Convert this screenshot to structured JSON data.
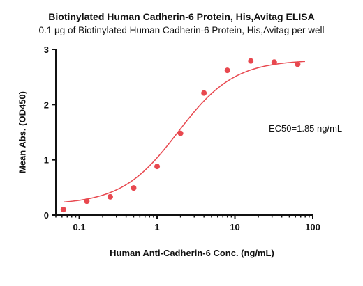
{
  "chart_data": {
    "type": "scatter",
    "title": "Biotinylated Human Cadherin-6 Protein, His,Avitag ELISA",
    "subtitle": "0.1 μg of Biotinylated Human Cadherin-6 Protein, His,Avitag per well",
    "xlabel": "Human Anti-Cadherin-6 Conc. (ng/mL)",
    "ylabel": "Mean Abs. (OD450)",
    "x_scale": "log",
    "xlim": [
      0.05,
      100
    ],
    "ylim": [
      0,
      3
    ],
    "x_ticks": [
      "0.1",
      "1",
      "10",
      "100"
    ],
    "y_ticks": [
      "0",
      "1",
      "2",
      "3"
    ],
    "annotation": "EC50=1.85 ng/mL",
    "series": [
      {
        "color": "#e8484f",
        "x": [
          0.0625,
          0.125,
          0.25,
          0.5,
          1,
          2,
          4,
          8,
          16,
          32,
          64
        ],
        "y": [
          0.1,
          0.25,
          0.33,
          0.49,
          0.88,
          1.48,
          2.21,
          2.62,
          2.79,
          2.77,
          2.73
        ]
      }
    ],
    "fit": {
      "model": "4PL",
      "bottom": 0.19,
      "top": 2.81,
      "ec50": 1.85,
      "hill": 1.2,
      "color": "#e8484f"
    }
  }
}
